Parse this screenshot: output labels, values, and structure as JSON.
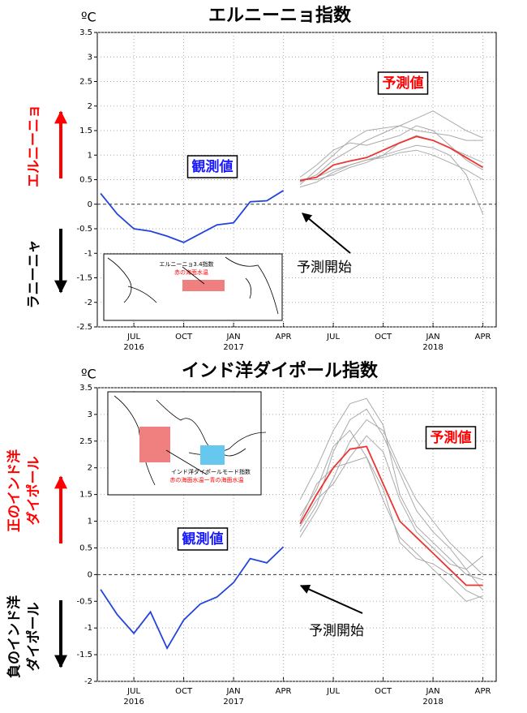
{
  "chart_data": [
    {
      "type": "line",
      "title": "エルニーニョ指数",
      "unit_label": "ºC",
      "annotations": {
        "forecast": "予測値",
        "observed": "観測値",
        "start": "予測開始"
      },
      "side_labels": [
        {
          "lines": [
            "エルニーニョ"
          ],
          "color": "#ff0000"
        },
        {
          "lines": [
            "ラニーニャ"
          ],
          "color": "#000000"
        }
      ],
      "inset": {
        "title": "エルニーニョ3.4指数",
        "subtitle": "赤の海面水温"
      },
      "xlim": [
        3.8,
        27.8
      ],
      "ylim": [
        -2.5,
        3.5
      ],
      "xticks": [
        {
          "value": 6,
          "label": "JUL"
        },
        {
          "value": 9,
          "label": "OCT"
        },
        {
          "value": 12,
          "label": "JAN"
        },
        {
          "value": 15,
          "label": "APR"
        },
        {
          "value": 18,
          "label": "JUL"
        },
        {
          "value": 21,
          "label": "OCT"
        },
        {
          "value": 24,
          "label": "JAN"
        },
        {
          "value": 27,
          "label": "APR"
        }
      ],
      "year_ticks": [
        {
          "value": 6,
          "label": "2016"
        },
        {
          "value": 12,
          "label": "2017"
        },
        {
          "value": 24,
          "label": "2018"
        }
      ],
      "yticks": [
        3.5,
        3,
        2.5,
        2,
        1.5,
        1,
        0.5,
        0,
        -0.5,
        -1,
        -1.5,
        -2,
        -2.5
      ],
      "grid": true,
      "series": [
        {
          "color": "#aaaaaa",
          "x": [
            16,
            17,
            18,
            19,
            20,
            21,
            22,
            23,
            24,
            25,
            26,
            27
          ],
          "values": [
            0.45,
            0.6,
            0.9,
            1.1,
            1.3,
            1.45,
            1.6,
            1.75,
            1.9,
            1.7,
            1.5,
            1.35
          ]
        },
        {
          "color": "#aaaaaa",
          "x": [
            16,
            17,
            18,
            19,
            20,
            21,
            22,
            23,
            24,
            25,
            26,
            27
          ],
          "values": [
            0.5,
            0.55,
            0.7,
            0.8,
            0.9,
            1.0,
            1.1,
            1.2,
            1.15,
            1.0,
            0.6,
            -0.2
          ]
        },
        {
          "color": "#aaaaaa",
          "x": [
            16,
            17,
            18,
            19,
            20,
            21,
            22,
            23,
            24,
            25,
            26,
            27
          ],
          "values": [
            0.4,
            0.7,
            1.0,
            1.3,
            1.5,
            1.55,
            1.6,
            1.5,
            1.45,
            1.4,
            1.3,
            1.3
          ]
        },
        {
          "color": "#aaaaaa",
          "x": [
            16,
            17,
            18,
            19,
            20,
            21,
            22,
            23,
            24,
            25,
            26,
            27
          ],
          "values": [
            0.5,
            0.5,
            0.6,
            0.75,
            0.85,
            1.0,
            1.25,
            1.4,
            1.3,
            1.15,
            1.0,
            0.85
          ]
        },
        {
          "color": "#aaaaaa",
          "x": [
            16,
            17,
            18,
            19,
            20,
            21,
            22,
            23,
            24,
            25,
            26,
            27
          ],
          "values": [
            0.35,
            0.45,
            0.65,
            0.8,
            0.9,
            0.95,
            1.05,
            1.1,
            1.0,
            0.85,
            0.7,
            0.5
          ]
        },
        {
          "color": "#aaaaaa",
          "x": [
            16,
            17,
            18,
            19,
            20,
            21,
            22,
            23,
            24,
            25,
            26,
            27
          ],
          "values": [
            0.55,
            0.8,
            1.1,
            1.25,
            1.2,
            1.3,
            1.4,
            1.6,
            1.5,
            1.2,
            0.9,
            0.7
          ]
        },
        {
          "color": "#ee3333",
          "x": [
            16,
            17,
            18,
            19,
            20,
            21,
            22,
            23,
            24,
            25,
            26,
            27
          ],
          "values": [
            0.48,
            0.55,
            0.8,
            0.88,
            0.95,
            1.1,
            1.25,
            1.38,
            1.3,
            1.15,
            0.95,
            0.75
          ]
        },
        {
          "color": "#2244dd",
          "x": [
            4,
            5,
            6,
            7,
            8,
            9,
            10,
            11,
            12,
            13,
            14,
            15
          ],
          "values": [
            0.22,
            -0.2,
            -0.5,
            -0.55,
            -0.65,
            -0.78,
            -0.6,
            -0.42,
            -0.38,
            0.05,
            0.07,
            0.28
          ]
        }
      ]
    },
    {
      "type": "line",
      "title": "インド洋ダイポール指数",
      "unit_label": "ºC",
      "annotations": {
        "forecast": "予測値",
        "observed": "観測値",
        "start": "予測開始"
      },
      "side_labels": [
        {
          "lines": [
            "正のインド洋",
            "ダイポール"
          ],
          "color": "#ff0000"
        },
        {
          "lines": [
            "負のインド洋",
            "ダイポール"
          ],
          "color": "#000000"
        }
      ],
      "inset": {
        "title": "インド洋ダイポールモード指数",
        "subtitle": "赤の海面水温ー青の海面水温"
      },
      "xlim": [
        3.8,
        27.8
      ],
      "ylim": [
        -2,
        3.5
      ],
      "xticks": [
        {
          "value": 6,
          "label": "JUL"
        },
        {
          "value": 9,
          "label": "OCT"
        },
        {
          "value": 12,
          "label": "JAN"
        },
        {
          "value": 15,
          "label": "APR"
        },
        {
          "value": 18,
          "label": "JUL"
        },
        {
          "value": 21,
          "label": "OCT"
        },
        {
          "value": 24,
          "label": "JAN"
        },
        {
          "value": 27,
          "label": "APR"
        }
      ],
      "year_ticks": [
        {
          "value": 6,
          "label": "2016"
        },
        {
          "value": 12,
          "label": "2017"
        },
        {
          "value": 24,
          "label": "2018"
        }
      ],
      "yticks": [
        3.5,
        3,
        2.5,
        2,
        1.5,
        1,
        0.5,
        0,
        -0.5,
        -1,
        -1.5,
        -2
      ],
      "grid": true,
      "series": [
        {
          "color": "#aaaaaa",
          "x": [
            16,
            17,
            18,
            19,
            20,
            21,
            22,
            23,
            24,
            25,
            26,
            27
          ],
          "values": [
            1.4,
            2.0,
            2.7,
            3.2,
            3.3,
            2.8,
            1.5,
            0.9,
            0.6,
            0.3,
            0.0,
            -0.1
          ]
        },
        {
          "color": "#aaaaaa",
          "x": [
            16,
            17,
            18,
            19,
            20,
            21,
            22,
            23,
            24,
            25,
            26,
            27
          ],
          "values": [
            0.8,
            1.3,
            2.3,
            2.9,
            3.1,
            2.6,
            1.9,
            1.2,
            0.8,
            0.5,
            0.1,
            -0.3
          ]
        },
        {
          "color": "#aaaaaa",
          "x": [
            16,
            17,
            18,
            19,
            20,
            21,
            22,
            23,
            24,
            25,
            26,
            27
          ],
          "values": [
            1.0,
            1.7,
            2.0,
            2.1,
            2.2,
            1.6,
            0.6,
            0.3,
            0.2,
            0.0,
            -0.3,
            -0.45
          ]
        },
        {
          "color": "#aaaaaa",
          "x": [
            16,
            17,
            18,
            19,
            20,
            21,
            22,
            23,
            24,
            25,
            26,
            27
          ],
          "values": [
            0.9,
            1.4,
            1.7,
            2.2,
            2.6,
            2.3,
            1.4,
            0.8,
            0.5,
            0.2,
            0.1,
            0.35
          ]
        },
        {
          "color": "#aaaaaa",
          "x": [
            16,
            17,
            18,
            19,
            20,
            21,
            22,
            23,
            24,
            25,
            26,
            27
          ],
          "values": [
            1.1,
            1.6,
            2.4,
            2.7,
            2.2,
            1.4,
            0.7,
            0.4,
            0.1,
            -0.2,
            -0.5,
            -0.4
          ]
        },
        {
          "color": "#aaaaaa",
          "x": [
            16,
            17,
            18,
            19,
            20,
            21,
            22,
            23,
            24,
            25,
            26,
            27
          ],
          "values": [
            0.7,
            1.2,
            1.8,
            2.5,
            2.9,
            2.7,
            2.0,
            1.4,
            1.0,
            0.6,
            0.3,
            0.0
          ]
        },
        {
          "color": "#ee3333",
          "x": [
            16,
            17,
            18,
            19,
            20,
            21,
            22,
            23,
            24,
            25,
            26,
            27
          ],
          "values": [
            0.95,
            1.5,
            2.0,
            2.35,
            2.4,
            1.7,
            1.0,
            0.7,
            0.4,
            0.1,
            -0.2,
            -0.2
          ]
        },
        {
          "color": "#2244dd",
          "x": [
            4,
            5,
            6,
            7,
            8,
            9,
            10,
            11,
            12,
            13,
            14,
            15
          ],
          "values": [
            -0.28,
            -0.75,
            -1.1,
            -0.7,
            -1.38,
            -0.85,
            -0.55,
            -0.42,
            -0.15,
            0.3,
            0.22,
            0.52
          ]
        }
      ]
    }
  ]
}
